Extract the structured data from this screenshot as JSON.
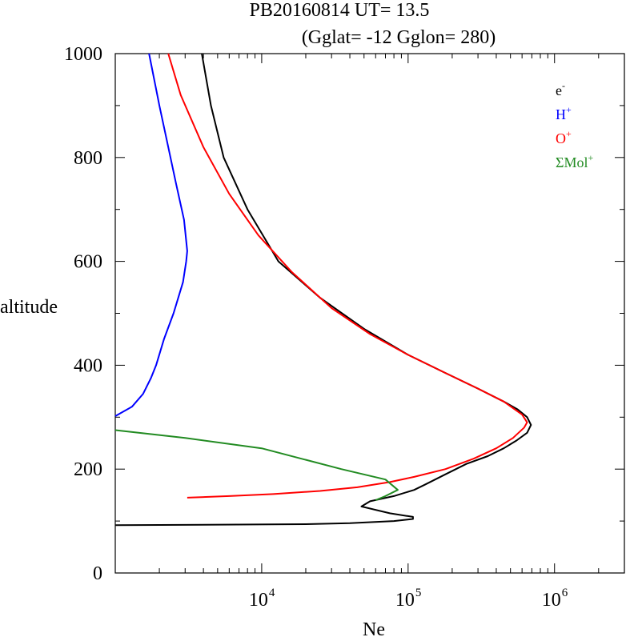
{
  "title": {
    "line1": "PB20160814   UT=  13.5",
    "line2": "(Gglat= -12   Gglon=  280)"
  },
  "chart_data": {
    "type": "line",
    "xscale": "log",
    "xlim": [
      1000,
      3000000
    ],
    "ylim": [
      0,
      1000
    ],
    "xlabel": "Ne",
    "ylabel": "altitude",
    "yticks": [
      {
        "value": 0,
        "label": "0"
      },
      {
        "value": 200,
        "label": "200"
      },
      {
        "value": 400,
        "label": "400"
      },
      {
        "value": 600,
        "label": "600"
      },
      {
        "value": 800,
        "label": "800"
      },
      {
        "value": 1000,
        "label": "1000"
      }
    ],
    "xticks": [
      {
        "value": 10000,
        "base": "10",
        "exp": "4"
      },
      {
        "value": 100000,
        "base": "10",
        "exp": "5"
      },
      {
        "value": 1000000,
        "base": "10",
        "exp": "6"
      }
    ],
    "grid": false,
    "legend_position": "top-right",
    "series": [
      {
        "name": "e",
        "sup": "-",
        "color": "#000000",
        "points": [
          [
            1000,
            92
          ],
          [
            20000,
            94
          ],
          [
            40000,
            96
          ],
          [
            80000,
            100
          ],
          [
            108000,
            104
          ],
          [
            108000,
            108
          ],
          [
            75000,
            115
          ],
          [
            48000,
            128
          ],
          [
            55000,
            138
          ],
          [
            80000,
            148
          ],
          [
            110000,
            160
          ],
          [
            130000,
            170
          ],
          [
            180000,
            190
          ],
          [
            250000,
            210
          ],
          [
            350000,
            225
          ],
          [
            450000,
            240
          ],
          [
            550000,
            255
          ],
          [
            650000,
            270
          ],
          [
            690000,
            285
          ],
          [
            650000,
            300
          ],
          [
            560000,
            315
          ],
          [
            450000,
            330
          ],
          [
            300000,
            355
          ],
          [
            180000,
            385
          ],
          [
            100000,
            420
          ],
          [
            50000,
            470
          ],
          [
            25000,
            530
          ],
          [
            13000,
            600
          ],
          [
            8000,
            700
          ],
          [
            5500,
            800
          ],
          [
            4500,
            900
          ],
          [
            3900,
            1000
          ]
        ]
      },
      {
        "name": "H",
        "sup": "+",
        "color": "#0000ff",
        "points": [
          [
            1000,
            302
          ],
          [
            1300,
            320
          ],
          [
            1550,
            345
          ],
          [
            1750,
            375
          ],
          [
            1900,
            400
          ],
          [
            2150,
            450
          ],
          [
            2500,
            500
          ],
          [
            2900,
            560
          ],
          [
            3050,
            600
          ],
          [
            3100,
            620
          ],
          [
            2950,
            680
          ],
          [
            2600,
            750
          ],
          [
            2300,
            820
          ],
          [
            2000,
            900
          ],
          [
            1700,
            1000
          ]
        ]
      },
      {
        "name": "O",
        "sup": "+",
        "color": "#ff0000",
        "points": [
          [
            3100,
            145
          ],
          [
            6000,
            148
          ],
          [
            12000,
            152
          ],
          [
            25000,
            158
          ],
          [
            45000,
            165
          ],
          [
            75000,
            175
          ],
          [
            110000,
            185
          ],
          [
            180000,
            200
          ],
          [
            280000,
            220
          ],
          [
            400000,
            240
          ],
          [
            520000,
            260
          ],
          [
            620000,
            280
          ],
          [
            650000,
            290
          ],
          [
            600000,
            305
          ],
          [
            450000,
            330
          ],
          [
            300000,
            355
          ],
          [
            180000,
            385
          ],
          [
            100000,
            420
          ],
          [
            55000,
            460
          ],
          [
            30000,
            510
          ],
          [
            16000,
            580
          ],
          [
            9500,
            650
          ],
          [
            6000,
            730
          ],
          [
            4000,
            820
          ],
          [
            2800,
            920
          ],
          [
            2300,
            1000
          ]
        ]
      },
      {
        "name": "ΣMol",
        "sup": "+",
        "color": "#228b22",
        "points": [
          [
            1000,
            275
          ],
          [
            3000,
            260
          ],
          [
            10000,
            240
          ],
          [
            35000,
            200
          ],
          [
            70000,
            180
          ],
          [
            85000,
            160
          ],
          [
            70000,
            148
          ],
          [
            60000,
            140
          ]
        ]
      }
    ]
  }
}
